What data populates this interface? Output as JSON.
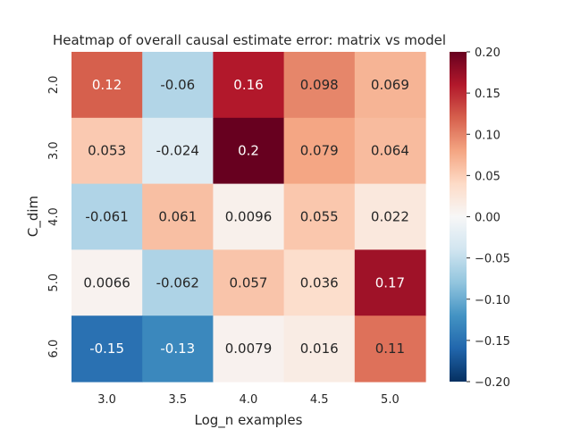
{
  "chart_data": {
    "type": "heatmap",
    "title": "Heatmap of overall causal estimate error: matrix vs model",
    "xlabel": "Log_n examples",
    "ylabel": "C_dim",
    "x_categories": [
      "3.0",
      "3.5",
      "4.0",
      "4.5",
      "5.0"
    ],
    "y_categories": [
      "2.0",
      "3.0",
      "4.0",
      "5.0",
      "6.0"
    ],
    "values": [
      [
        0.12,
        -0.06,
        0.16,
        0.098,
        0.069
      ],
      [
        0.053,
        -0.024,
        0.2,
        0.079,
        0.064
      ],
      [
        -0.061,
        0.061,
        0.0096,
        0.055,
        0.022
      ],
      [
        0.0066,
        -0.062,
        0.057,
        0.036,
        0.17
      ],
      [
        -0.15,
        -0.13,
        0.0079,
        0.016,
        0.11
      ]
    ],
    "annotations": [
      [
        "0.12",
        "-0.06",
        "0.16",
        "0.098",
        "0.069"
      ],
      [
        "0.053",
        "-0.024",
        "0.2",
        "0.079",
        "0.064"
      ],
      [
        "-0.061",
        "0.061",
        "0.0096",
        "0.055",
        "0.022"
      ],
      [
        "0.0066",
        "-0.062",
        "0.057",
        "0.036",
        "0.17"
      ],
      [
        "-0.15",
        "-0.13",
        "0.0079",
        "0.016",
        "0.11"
      ]
    ],
    "colorbar": {
      "vmin": -0.2,
      "vmax": 0.2,
      "colormap": "RdBu_r",
      "tick_values": [
        0.2,
        0.15,
        0.1,
        0.05,
        0.0,
        -0.05,
        -0.1,
        -0.15,
        -0.2
      ],
      "tick_labels": [
        "0.20",
        "0.15",
        "0.10",
        "0.05",
        "0.00",
        "−0.05",
        "−0.10",
        "−0.15",
        "−0.20"
      ]
    },
    "grid": false
  }
}
